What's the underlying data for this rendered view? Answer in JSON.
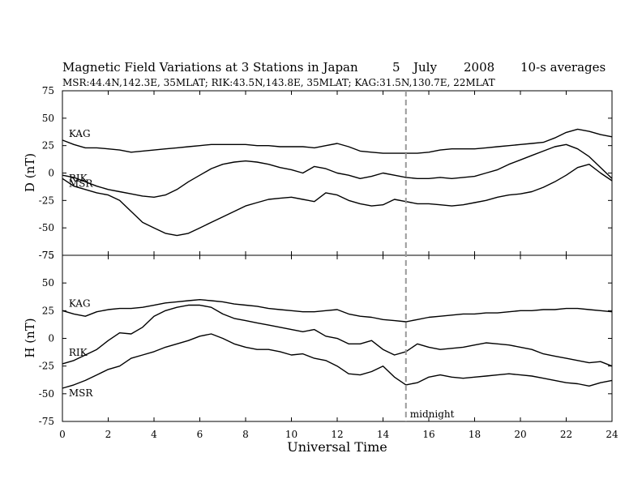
{
  "chart_data": {
    "type": "line",
    "title_parts": [
      "Magnetic Field Variations at 3 Stations in Japan",
      "5",
      "July",
      "2008",
      "10-s averages"
    ],
    "subtitle": "MSR:44.4N,142.3E, 35MLAT;   RIK:43.5N,143.8E, 35MLAT;   KAG:31.5N,130.7E, 22MLAT",
    "xlabel": "Universal Time",
    "xlim": [
      0,
      24
    ],
    "xticks": [
      "0",
      "2",
      "4",
      "6",
      "8",
      "10",
      "12",
      "14",
      "16",
      "18",
      "20",
      "22",
      "24"
    ],
    "midnight_marker": {
      "x": 15,
      "label": "midnight"
    },
    "grid": false,
    "panels": [
      {
        "ylabel": "D (nT)",
        "ylim": [
          -75,
          75
        ],
        "yticks": [
          "75",
          "50",
          "25",
          "0",
          "-25",
          "-50",
          "-75"
        ],
        "series": [
          {
            "name": "KAG",
            "x": [
              0,
              0.5,
              1,
              1.5,
              2,
              2.5,
              3,
              3.5,
              4,
              4.5,
              5,
              5.5,
              6,
              6.5,
              7,
              7.5,
              8,
              8.5,
              9,
              9.5,
              10,
              10.5,
              11,
              11.5,
              12,
              12.5,
              13,
              13.5,
              14,
              14.5,
              15,
              15.5,
              16,
              16.5,
              17,
              17.5,
              18,
              18.5,
              19,
              19.5,
              20,
              20.5,
              21,
              21.5,
              22,
              22.5,
              23,
              23.5,
              24
            ],
            "values": [
              30,
              26,
              23,
              23,
              22,
              21,
              19,
              20,
              21,
              22,
              23,
              24,
              25,
              26,
              26,
              26,
              26,
              25,
              25,
              24,
              24,
              24,
              23,
              25,
              27,
              24,
              20,
              19,
              18,
              18,
              18,
              18,
              19,
              21,
              22,
              22,
              22,
              23,
              24,
              25,
              26,
              27,
              28,
              32,
              37,
              40,
              38,
              35,
              33
            ]
          },
          {
            "name": "RIK",
            "x": [
              0,
              0.5,
              1,
              1.5,
              2,
              2.5,
              3,
              3.5,
              4,
              4.5,
              5,
              5.5,
              6,
              6.5,
              7,
              7.5,
              8,
              8.5,
              9,
              9.5,
              10,
              10.5,
              11,
              11.5,
              12,
              12.5,
              13,
              13.5,
              14,
              14.5,
              15,
              15.5,
              16,
              16.5,
              17,
              17.5,
              18,
              18.5,
              19,
              19.5,
              20,
              20.5,
              21,
              21.5,
              22,
              22.5,
              23,
              23.5,
              24
            ],
            "values": [
              -2,
              -4,
              -8,
              -12,
              -15,
              -17,
              -19,
              -21,
              -22,
              -20,
              -15,
              -8,
              -2,
              4,
              8,
              10,
              11,
              10,
              8,
              5,
              3,
              0,
              6,
              4,
              0,
              -2,
              -5,
              -3,
              0,
              -2,
              -4,
              -5,
              -5,
              -4,
              -5,
              -4,
              -3,
              0,
              3,
              8,
              12,
              16,
              20,
              24,
              26,
              22,
              15,
              5,
              -5
            ]
          },
          {
            "name": "MSR",
            "x": [
              0,
              0.5,
              1,
              1.5,
              2,
              2.5,
              3,
              3.5,
              4,
              4.5,
              5,
              5.5,
              6,
              6.5,
              7,
              7.5,
              8,
              8.5,
              9,
              9.5,
              10,
              10.5,
              11,
              11.5,
              12,
              12.5,
              13,
              13.5,
              14,
              14.5,
              15,
              15.5,
              16,
              16.5,
              17,
              17.5,
              18,
              18.5,
              19,
              19.5,
              20,
              20.5,
              21,
              21.5,
              22,
              22.5,
              23,
              23.5,
              24
            ],
            "values": [
              -5,
              -12,
              -15,
              -18,
              -20,
              -25,
              -35,
              -45,
              -50,
              -55,
              -57,
              -55,
              -50,
              -45,
              -40,
              -35,
              -30,
              -27,
              -24,
              -23,
              -22,
              -24,
              -26,
              -18,
              -20,
              -25,
              -28,
              -30,
              -29,
              -24,
              -26,
              -28,
              -28,
              -29,
              -30,
              -29,
              -27,
              -25,
              -22,
              -20,
              -19,
              -17,
              -13,
              -8,
              -2,
              5,
              8,
              0,
              -7
            ]
          }
        ]
      },
      {
        "ylabel": "H (nT)",
        "ylim": [
          -75,
          75
        ],
        "yticks": [
          "75",
          "50",
          "25",
          "0",
          "-25",
          "-50",
          "-75"
        ],
        "series": [
          {
            "name": "KAG",
            "x": [
              0,
              0.5,
              1,
              1.5,
              2,
              2.5,
              3,
              3.5,
              4,
              4.5,
              5,
              5.5,
              6,
              6.5,
              7,
              7.5,
              8,
              8.5,
              9,
              9.5,
              10,
              10.5,
              11,
              11.5,
              12,
              12.5,
              13,
              13.5,
              14,
              14.5,
              15,
              15.5,
              16,
              16.5,
              17,
              17.5,
              18,
              18.5,
              19,
              19.5,
              20,
              20.5,
              21,
              21.5,
              22,
              22.5,
              23,
              23.5,
              24
            ],
            "values": [
              25,
              22,
              20,
              24,
              26,
              27,
              27,
              28,
              30,
              32,
              33,
              34,
              35,
              34,
              33,
              31,
              30,
              29,
              27,
              26,
              25,
              24,
              24,
              25,
              26,
              22,
              20,
              19,
              17,
              16,
              15,
              17,
              19,
              20,
              21,
              22,
              22,
              23,
              23,
              24,
              25,
              25,
              26,
              26,
              27,
              27,
              26,
              25,
              24
            ]
          },
          {
            "name": "RIK",
            "x": [
              0,
              0.5,
              1,
              1.5,
              2,
              2.5,
              3,
              3.5,
              4,
              4.5,
              5,
              5.5,
              6,
              6.5,
              7,
              7.5,
              8,
              8.5,
              9,
              9.5,
              10,
              10.5,
              11,
              11.5,
              12,
              12.5,
              13,
              13.5,
              14,
              14.5,
              15,
              15.5,
              16,
              16.5,
              17,
              17.5,
              18,
              18.5,
              19,
              19.5,
              20,
              20.5,
              21,
              21.5,
              22,
              22.5,
              23,
              23.5,
              24
            ],
            "values": [
              -23,
              -20,
              -15,
              -10,
              -2,
              5,
              4,
              10,
              20,
              25,
              28,
              30,
              30,
              28,
              22,
              18,
              16,
              14,
              12,
              10,
              8,
              6,
              8,
              2,
              0,
              -5,
              -5,
              -2,
              -10,
              -15,
              -12,
              -5,
              -8,
              -10,
              -9,
              -8,
              -6,
              -4,
              -5,
              -6,
              -8,
              -10,
              -14,
              -16,
              -18,
              -20,
              -22,
              -21,
              -25
            ]
          },
          {
            "name": "MSR",
            "x": [
              0,
              0.5,
              1,
              1.5,
              2,
              2.5,
              3,
              3.5,
              4,
              4.5,
              5,
              5.5,
              6,
              6.5,
              7,
              7.5,
              8,
              8.5,
              9,
              9.5,
              10,
              10.5,
              11,
              11.5,
              12,
              12.5,
              13,
              13.5,
              14,
              14.5,
              15,
              15.5,
              16,
              16.5,
              17,
              17.5,
              18,
              18.5,
              19,
              19.5,
              20,
              20.5,
              21,
              21.5,
              22,
              22.5,
              23,
              23.5,
              24
            ],
            "values": [
              -45,
              -42,
              -38,
              -33,
              -28,
              -25,
              -18,
              -15,
              -12,
              -8,
              -5,
              -2,
              2,
              4,
              0,
              -5,
              -8,
              -10,
              -10,
              -12,
              -15,
              -14,
              -18,
              -20,
              -25,
              -32,
              -33,
              -30,
              -25,
              -35,
              -42,
              -40,
              -35,
              -33,
              -35,
              -36,
              -35,
              -34,
              -33,
              -32,
              -33,
              -34,
              -36,
              -38,
              -40,
              -41,
              -43,
              -40,
              -38
            ]
          }
        ]
      }
    ]
  }
}
